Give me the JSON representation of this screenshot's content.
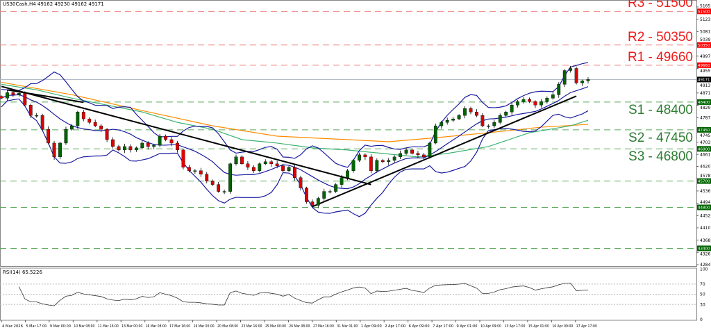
{
  "header": {
    "symbol_info": "US30Cash,H4  49162 49230 49162 49171",
    "rsi_info": "RSI(14) 65.5226"
  },
  "levels": [
    {
      "label": "R3 - 51500",
      "price": 51500,
      "type": "resistance",
      "tag": "51500"
    },
    {
      "label": "R2 - 50350",
      "price": 50350,
      "type": "resistance",
      "tag": "50350"
    },
    {
      "label": "R1 - 49660",
      "price": 49660,
      "type": "resistance",
      "tag": "49660"
    },
    {
      "label": "S1 - 48400",
      "price": 48400,
      "type": "support",
      "tag": "48400"
    },
    {
      "label": "S2 - 47450",
      "price": 47450,
      "type": "support",
      "tag": "47450"
    },
    {
      "label": "S3 - 46800",
      "price": 46800,
      "type": "support",
      "tag": "46800"
    },
    {
      "label": "",
      "price": 45700,
      "type": "support",
      "tag": "45700"
    },
    {
      "label": "",
      "price": 44800,
      "type": "support",
      "tag": "44800"
    },
    {
      "label": "",
      "price": 43400,
      "type": "support",
      "tag": "43400"
    }
  ],
  "colors": {
    "resistance": "#ee1c1c",
    "support": "#2e7d32",
    "bull": "#006400",
    "bear": "#e00000",
    "bollinger": "#1a1aa0",
    "ma_orange": "#ff8c00",
    "ma_green": "#3cb371",
    "trendline": "#000000",
    "current_price_line": "#a8b4c0"
  },
  "chart_data": {
    "type": "candlestick",
    "symbol": "US30Cash",
    "timeframe": "H4",
    "current_price": 49171,
    "y_ticks": [
      51651,
      51231,
      50811,
      50391,
      49971,
      49551,
      49131,
      48711,
      48291,
      47871,
      47451,
      47031,
      46611,
      46201,
      45781,
      45361,
      44941,
      44521,
      44101,
      43681,
      43261,
      42841
    ],
    "ylim": [
      42841,
      51651
    ],
    "x_ticks": [
      "4 Mar 2026",
      "5 Mar 17:00",
      "9 Mar 00:00",
      "10 Mar 08:00",
      "11 Mar 16:00",
      "13 Mar 00:00",
      "16 Mar 08:00",
      "17 Mar 16:00",
      "19 Mar 00:00",
      "20 Mar 08:00",
      "23 Mar 16:00",
      "25 Mar 00:00",
      "26 Mar 08:00",
      "27 Mar 16:00",
      "31 Mar 01:00",
      "1 Apr 09:00",
      "2 Apr 17:00",
      "6 Apr 09:00",
      "7 Apr 17:00",
      "9 Apr 01:00",
      "10 Apr 09:00",
      "13 Apr 17:00",
      "15 Apr 01:00",
      "16 Apr 09:00",
      "17 Apr 17:00"
    ],
    "closes": [
      48533,
      48722,
      48651,
      48699,
      48297,
      47943,
      47943,
      47470,
      46998,
      46525,
      46998,
      47470,
      47588,
      48061,
      47825,
      47706,
      47588,
      47470,
      47116,
      46880,
      46762,
      46880,
      46762,
      46833,
      46998,
      46880,
      46927,
      47234,
      47116,
      46998,
      46762,
      46171,
      46053,
      46053,
      45935,
      45699,
      45581,
      45344,
      45344,
      46289,
      46525,
      46289,
      46171,
      46053,
      46289,
      46360,
      46289,
      46218,
      46053,
      46171,
      45817,
      45463,
      44990,
      44872,
      45108,
      45344,
      45344,
      45581,
      45817,
      46053,
      46407,
      46596,
      46525,
      46053,
      46407,
      46360,
      46407,
      46525,
      46644,
      46762,
      46644,
      46596,
      46525,
      46998,
      47588,
      47706,
      47777,
      47825,
      47943,
      48179,
      48061,
      47943,
      47588,
      47588,
      47706,
      47943,
      48061,
      48297,
      48415,
      48486,
      48415,
      48297,
      48415,
      48533,
      48651,
      49006,
      49478,
      49549,
      49053,
      49124,
      49171
    ],
    "ma_orange": [
      [
        0,
        49076
      ],
      [
        12,
        48651
      ],
      [
        24,
        48108
      ],
      [
        36,
        47588
      ],
      [
        47,
        47234
      ],
      [
        59,
        47116
      ],
      [
        66,
        47045
      ],
      [
        73,
        47163
      ],
      [
        83,
        47352
      ],
      [
        92,
        47541
      ],
      [
        100,
        47636
      ]
    ],
    "ma_green": [
      [
        0,
        49006
      ],
      [
        6,
        48817
      ],
      [
        12,
        48533
      ],
      [
        18,
        48297
      ],
      [
        24,
        48061
      ],
      [
        30,
        47706
      ],
      [
        36,
        47470
      ],
      [
        41,
        47116
      ],
      [
        47,
        46998
      ],
      [
        53,
        46833
      ],
      [
        59,
        46762
      ],
      [
        65,
        46644
      ],
      [
        71,
        46525
      ],
      [
        76,
        46644
      ],
      [
        83,
        46880
      ],
      [
        90,
        47352
      ],
      [
        97,
        47588
      ],
      [
        100,
        47777
      ]
    ],
    "bollinger": {
      "period": 10,
      "deviations": 2
    },
    "trendlines": [
      [
        [
          0,
          48935
        ],
        [
          63,
          45581
        ]
      ],
      [
        [
          1,
          48817
        ],
        [
          14,
          48391
        ]
      ],
      [
        [
          53,
          44825
        ],
        [
          98,
          48604
        ]
      ]
    ],
    "rsi": {
      "period": 14,
      "levels": [
        70,
        50,
        30
      ],
      "y_ticks": [
        100,
        70,
        50,
        30,
        0
      ],
      "last": 65.5226
    }
  }
}
